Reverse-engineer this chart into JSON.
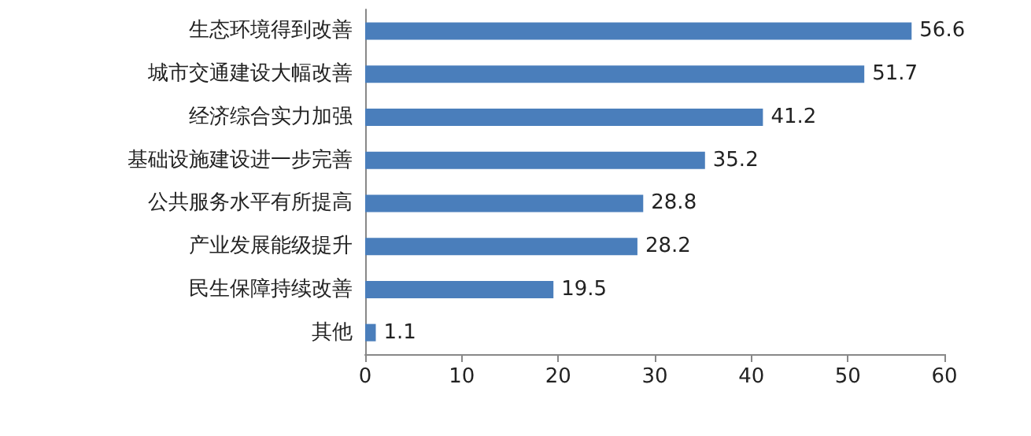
{
  "chart_data": {
    "type": "bar",
    "orientation": "horizontal",
    "categories": [
      "生态环境得到改善",
      "城市交通建设大幅改善",
      "经济综合实力加强",
      "基础设施建设进一步完善",
      "公共服务水平有所提高",
      "产业发展能级提升",
      "民生保障持续改善",
      "其他"
    ],
    "values": [
      56.6,
      51.7,
      41.2,
      35.2,
      28.8,
      28.2,
      19.5,
      1.1
    ],
    "color": "#4a7ebb",
    "data_labels": true,
    "xlim": [
      0,
      60
    ],
    "xticks": [
      0,
      10,
      20,
      30,
      40,
      50,
      60
    ]
  }
}
